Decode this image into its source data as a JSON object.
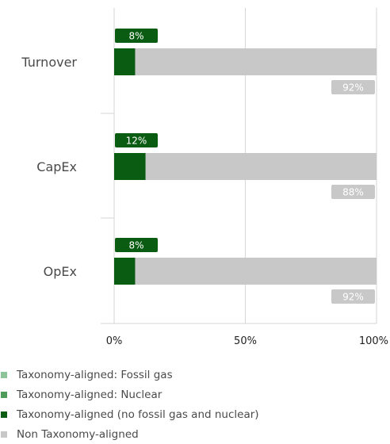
{
  "chart_data": {
    "type": "bar",
    "orientation": "horizontal",
    "stacked": true,
    "categories": [
      "Turnover",
      "CapEx",
      "OpEx"
    ],
    "series": [
      {
        "name": "Taxonomy-aligned: Fossil gas",
        "values": [
          0,
          0,
          0
        ],
        "color": "#8dc49a"
      },
      {
        "name": "Taxonomy-aligned: Nuclear",
        "values": [
          0,
          0,
          0
        ],
        "color": "#4e9a5a"
      },
      {
        "name": "Taxonomy-aligned (no fossil gas and nuclear)",
        "values": [
          8,
          12,
          8
        ],
        "color": "#0a5c12"
      },
      {
        "name": "Non Taxonomy-aligned",
        "values": [
          92,
          88,
          92
        ],
        "color": "#c8c8c8"
      }
    ],
    "aligned_labels": [
      "8%",
      "12%",
      "8%"
    ],
    "non_aligned_labels": [
      "92%",
      "88%",
      "92%"
    ],
    "x_ticks": [
      {
        "value": 0,
        "label": "0%"
      },
      {
        "value": 50,
        "label": "50%"
      },
      {
        "value": 100,
        "label": "100%"
      }
    ],
    "xlim": [
      0,
      100
    ],
    "grid": true,
    "legend_position": "bottom-left"
  }
}
